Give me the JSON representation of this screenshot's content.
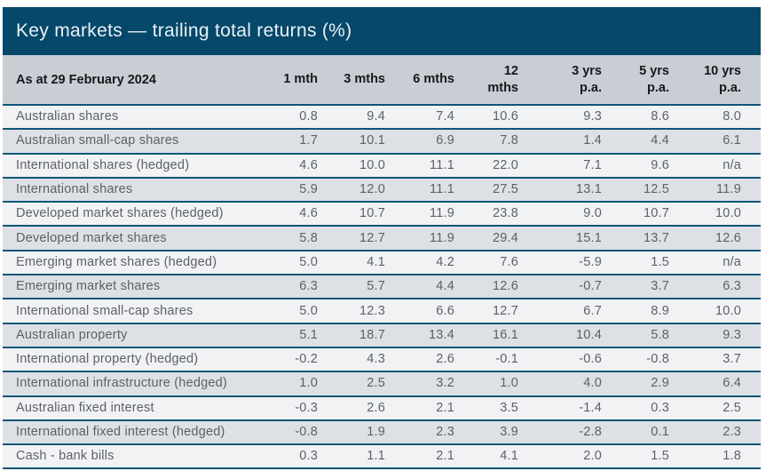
{
  "title": "Key markets — trailing total returns (%)",
  "colors": {
    "title_bar_bg": "#05486A",
    "title_text": "#EAF1F5",
    "header_row_bg": "#C9CDD4",
    "header_text": "#17181B",
    "row_light_bg": "#F1F2F4",
    "row_dark_bg": "#DDE0E5",
    "row_text": "#5D6167",
    "divider_line": "#0F5578"
  },
  "table": {
    "columns": [
      {
        "label": "As at 29 February 2024"
      },
      {
        "label": "1 mth"
      },
      {
        "label": "3 mths"
      },
      {
        "label": "6 mths"
      },
      {
        "label": "12 mths"
      },
      {
        "label": "3 yrs",
        "sub": "p.a."
      },
      {
        "label": "5 yrs",
        "sub": "p.a."
      },
      {
        "label": "10 yrs",
        "sub": "p.a."
      }
    ],
    "rows": [
      {
        "label": "Australian shares",
        "values": [
          "0.8",
          "9.4",
          "7.4",
          "10.6",
          "9.3",
          "8.6",
          "8.0"
        ]
      },
      {
        "label": "Australian small-cap shares",
        "values": [
          "1.7",
          "10.1",
          "6.9",
          "7.8",
          "1.4",
          "4.4",
          "6.1"
        ]
      },
      {
        "label": "International shares (hedged)",
        "values": [
          "4.6",
          "10.0",
          "11.1",
          "22.0",
          "7.1",
          "9.6",
          "n/a"
        ]
      },
      {
        "label": "International shares",
        "values": [
          "5.9",
          "12.0",
          "11.1",
          "27.5",
          "13.1",
          "12.5",
          "11.9"
        ]
      },
      {
        "label": "Developed market shares (hedged)",
        "values": [
          "4.6",
          "10.7",
          "11.9",
          "23.8",
          "9.0",
          "10.7",
          "10.0"
        ]
      },
      {
        "label": "Developed market shares",
        "values": [
          "5.8",
          "12.7",
          "11.9",
          "29.4",
          "15.1",
          "13.7",
          "12.6"
        ]
      },
      {
        "label": "Emerging market shares (hedged)",
        "values": [
          "5.0",
          "4.1",
          "4.2",
          "7.6",
          "-5.9",
          "1.5",
          "n/a"
        ]
      },
      {
        "label": "Emerging market shares",
        "values": [
          "6.3",
          "5.7",
          "4.4",
          "12.6",
          "-0.7",
          "3.7",
          "6.3"
        ]
      },
      {
        "label": "International small-cap shares",
        "values": [
          "5.0",
          "12.3",
          "6.6",
          "12.7",
          "6.7",
          "8.9",
          "10.0"
        ]
      },
      {
        "label": "Australian property",
        "values": [
          "5.1",
          "18.7",
          "13.4",
          "16.1",
          "10.4",
          "5.8",
          "9.3"
        ]
      },
      {
        "label": "International property (hedged)",
        "values": [
          "-0.2",
          "4.3",
          "2.6",
          "-0.1",
          "-0.6",
          "-0.8",
          "3.7"
        ]
      },
      {
        "label": "International infrastructure (hedged)",
        "values": [
          "1.0",
          "2.5",
          "3.2",
          "1.0",
          "4.0",
          "2.9",
          "6.4"
        ]
      },
      {
        "label": "Australian fixed interest",
        "values": [
          "-0.3",
          "2.6",
          "2.1",
          "3.5",
          "-1.4",
          "0.3",
          "2.5"
        ]
      },
      {
        "label": "International fixed interest (hedged)",
        "values": [
          "-0.8",
          "1.9",
          "2.3",
          "3.9",
          "-2.8",
          "0.1",
          "2.3"
        ]
      },
      {
        "label": "Cash - bank bills",
        "values": [
          "0.3",
          "1.1",
          "2.1",
          "4.1",
          "2.0",
          "1.5",
          "1.8"
        ]
      }
    ]
  }
}
